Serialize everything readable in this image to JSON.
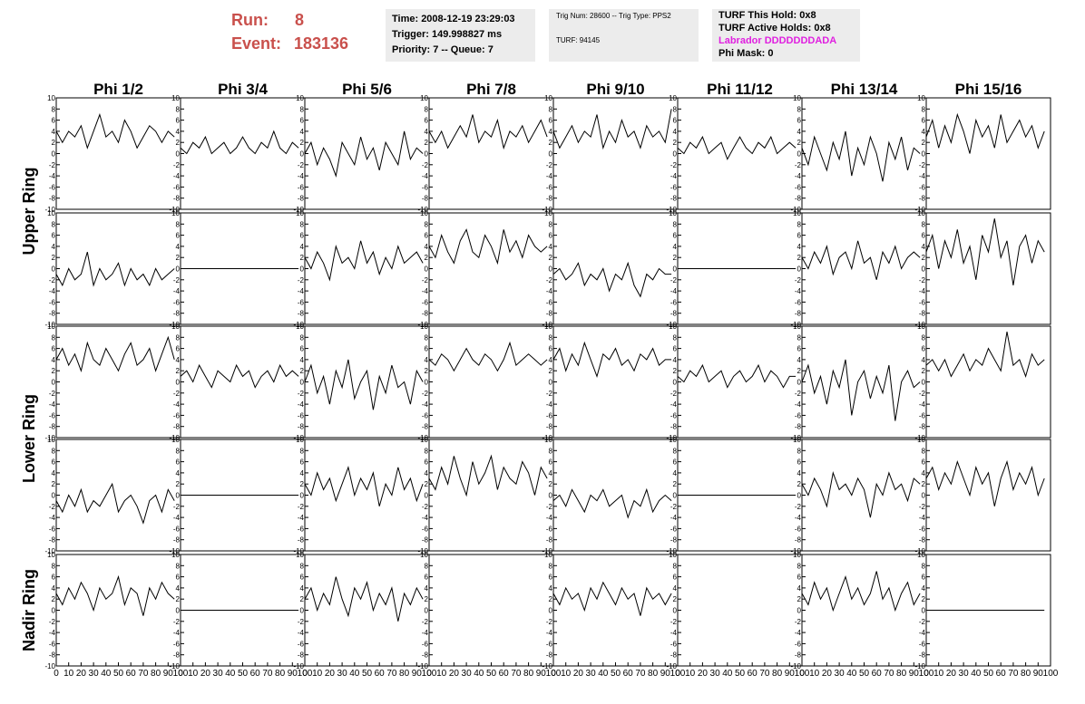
{
  "header": {
    "run_label": "Run:",
    "run": "8",
    "event_label": "Event:",
    "event": "183136",
    "time": "Time: 2008-12-19 23:29:03",
    "trigger": "Trigger: 149.998827 ms",
    "priority": "Priority: 7 -- Queue: 7",
    "trig_num": "Trig Num: 28600 -- Trig Type: PPS2",
    "turf": "TURF: 94145",
    "turf_hold": "TURF This Hold: 0x8",
    "turf_active": "TURF Active Holds: 0x8",
    "labrador": "Labrador DDDDDDDADA",
    "phi_mask": "Phi Mask: 0"
  },
  "chart_data": {
    "type": "line",
    "color": "#000000",
    "columns": [
      "Phi 1/2",
      "Phi 3/4",
      "Phi 5/6",
      "Phi 7/8",
      "Phi 9/10",
      "Phi 11/12",
      "Phi 13/14",
      "Phi 15/16"
    ],
    "ring_labels": [
      "Upper Ring",
      "Lower Ring",
      "Nadir Ring"
    ],
    "x": [
      0,
      5,
      10,
      15,
      20,
      25,
      30,
      35,
      40,
      45,
      50,
      55,
      60,
      65,
      70,
      75,
      80,
      85,
      90,
      95
    ],
    "xlim": [
      0,
      100
    ],
    "xticks": [
      0,
      10,
      20,
      30,
      40,
      50,
      60,
      70,
      80,
      90,
      100
    ],
    "ylim": [
      -10,
      10
    ],
    "yticks": [
      -10,
      -8,
      -6,
      -4,
      -2,
      0,
      2,
      4,
      6,
      8,
      10
    ],
    "traces": [
      [
        [
          4,
          2,
          4,
          3,
          5,
          1,
          4,
          7,
          3,
          4,
          2,
          6,
          4,
          1,
          3,
          5,
          4,
          2,
          4,
          3
        ],
        [
          1,
          0,
          2,
          1,
          3,
          0,
          1,
          2,
          0,
          1,
          3,
          1,
          0,
          2,
          1,
          4,
          1,
          0,
          2,
          1
        ],
        [
          0,
          2,
          -2,
          1,
          -1,
          -4,
          2,
          0,
          -2,
          3,
          -1,
          1,
          -3,
          2,
          0,
          -2,
          4,
          -1,
          1,
          0
        ],
        [
          4,
          2,
          4,
          1,
          3,
          5,
          3,
          7,
          2,
          4,
          3,
          6,
          1,
          4,
          3,
          5,
          2,
          4,
          6,
          3
        ],
        [
          4,
          1,
          3,
          5,
          2,
          4,
          3,
          7,
          1,
          4,
          2,
          6,
          3,
          4,
          1,
          5,
          3,
          4,
          2,
          8
        ],
        [
          1,
          0,
          2,
          1,
          3,
          0,
          1,
          2,
          -1,
          1,
          3,
          1,
          0,
          2,
          1,
          3,
          0,
          1,
          2,
          1
        ],
        [
          1,
          -2,
          3,
          0,
          -3,
          2,
          -1,
          4,
          -4,
          1,
          -2,
          3,
          0,
          -5,
          2,
          -1,
          3,
          -3,
          1,
          0
        ],
        [
          3,
          6,
          1,
          5,
          2,
          7,
          4,
          0,
          6,
          3,
          5,
          1,
          7,
          2,
          4,
          6,
          3,
          5,
          1,
          4
        ]
      ],
      [
        [
          -1,
          -3,
          0,
          -2,
          -1,
          3,
          -3,
          0,
          -2,
          -1,
          1,
          -3,
          0,
          -2,
          -1,
          -3,
          0,
          -2,
          -1,
          0
        ],
        [
          0,
          0,
          0,
          0,
          0,
          0,
          0,
          0,
          0,
          0,
          0,
          0,
          0,
          0,
          0,
          0,
          0,
          0,
          0,
          0
        ],
        [
          2,
          0,
          3,
          1,
          -2,
          4,
          1,
          2,
          0,
          5,
          1,
          3,
          -1,
          2,
          0,
          4,
          1,
          2,
          3,
          1
        ],
        [
          4,
          2,
          6,
          3,
          1,
          5,
          7,
          3,
          2,
          6,
          4,
          1,
          7,
          3,
          5,
          2,
          6,
          4,
          3,
          4
        ],
        [
          -1,
          0,
          -2,
          -1,
          1,
          -3,
          -1,
          -2,
          0,
          -4,
          -1,
          -2,
          1,
          -3,
          -5,
          -1,
          -2,
          0,
          -1,
          -1
        ],
        [
          0,
          0,
          0,
          0,
          0,
          0,
          0,
          0,
          0,
          0,
          0,
          0,
          0,
          0,
          0,
          0,
          0,
          0,
          0,
          0
        ],
        [
          2,
          0,
          3,
          1,
          4,
          -1,
          2,
          3,
          0,
          5,
          1,
          2,
          -2,
          3,
          1,
          4,
          0,
          2,
          3,
          2
        ],
        [
          3,
          6,
          0,
          5,
          2,
          7,
          1,
          4,
          -2,
          6,
          3,
          9,
          2,
          5,
          -3,
          4,
          6,
          1,
          5,
          3
        ]
      ],
      [
        [
          4,
          6,
          3,
          5,
          2,
          7,
          4,
          3,
          6,
          4,
          2,
          5,
          7,
          3,
          4,
          6,
          2,
          5,
          8,
          4
        ],
        [
          1,
          2,
          0,
          3,
          1,
          -1,
          2,
          1,
          0,
          3,
          1,
          2,
          -1,
          1,
          2,
          0,
          3,
          1,
          2,
          1
        ],
        [
          0,
          3,
          -2,
          1,
          -4,
          2,
          -1,
          4,
          -3,
          0,
          2,
          -5,
          1,
          -2,
          3,
          -1,
          0,
          -4,
          2,
          0
        ],
        [
          4,
          3,
          5,
          4,
          2,
          4,
          6,
          4,
          3,
          5,
          4,
          2,
          4,
          7,
          3,
          4,
          5,
          4,
          3,
          4
        ],
        [
          4,
          6,
          2,
          5,
          3,
          7,
          4,
          1,
          5,
          4,
          6,
          3,
          4,
          2,
          5,
          4,
          6,
          3,
          4,
          4
        ],
        [
          1,
          0,
          2,
          1,
          3,
          0,
          1,
          2,
          -1,
          1,
          2,
          0,
          1,
          3,
          0,
          2,
          1,
          -1,
          1,
          1
        ],
        [
          0,
          3,
          -2,
          1,
          -4,
          2,
          -1,
          4,
          -6,
          0,
          2,
          -3,
          1,
          -2,
          3,
          -7,
          0,
          2,
          -1,
          0
        ],
        [
          3,
          4,
          2,
          4,
          1,
          3,
          5,
          2,
          4,
          3,
          6,
          4,
          2,
          9,
          3,
          4,
          1,
          5,
          3,
          4
        ]
      ],
      [
        [
          -1,
          -3,
          0,
          -2,
          1,
          -3,
          -1,
          -2,
          0,
          2,
          -3,
          -1,
          0,
          -2,
          -5,
          -1,
          0,
          -3,
          1,
          -1
        ],
        [
          0,
          0,
          0,
          0,
          0,
          0,
          0,
          0,
          0,
          0,
          0,
          0,
          0,
          0,
          0,
          0,
          0,
          0,
          0,
          0
        ],
        [
          2,
          0,
          4,
          1,
          3,
          -1,
          2,
          5,
          0,
          3,
          1,
          4,
          -2,
          2,
          0,
          5,
          1,
          3,
          -1,
          2
        ],
        [
          3,
          1,
          5,
          2,
          7,
          3,
          0,
          6,
          2,
          4,
          7,
          1,
          5,
          3,
          2,
          6,
          4,
          0,
          5,
          3
        ],
        [
          -1,
          0,
          -2,
          1,
          -1,
          -3,
          0,
          -1,
          1,
          -2,
          -1,
          0,
          -4,
          -1,
          -2,
          1,
          -3,
          -1,
          0,
          -1
        ],
        [
          0,
          0,
          0,
          0,
          0,
          0,
          0,
          0,
          0,
          0,
          0,
          0,
          0,
          0,
          0,
          0,
          0,
          0,
          0,
          0
        ],
        [
          2,
          0,
          3,
          1,
          -2,
          4,
          1,
          2,
          0,
          3,
          1,
          -4,
          2,
          0,
          4,
          1,
          2,
          -1,
          3,
          2
        ],
        [
          3,
          5,
          1,
          4,
          2,
          6,
          3,
          0,
          5,
          2,
          4,
          -2,
          3,
          6,
          1,
          4,
          2,
          5,
          0,
          3
        ]
      ],
      [
        [
          3,
          1,
          4,
          2,
          5,
          3,
          0,
          4,
          2,
          3,
          6,
          1,
          4,
          3,
          -1,
          4,
          2,
          5,
          3,
          2
        ],
        [
          0,
          0,
          0,
          0,
          0,
          0,
          0,
          0,
          0,
          0,
          0,
          0,
          0,
          0,
          0,
          0,
          0,
          0,
          0,
          0
        ],
        [
          2,
          4,
          0,
          3,
          1,
          6,
          2,
          -1,
          4,
          2,
          5,
          0,
          3,
          1,
          4,
          -2,
          3,
          1,
          4,
          2
        ],
        null,
        [
          3,
          1,
          4,
          2,
          3,
          0,
          4,
          2,
          5,
          3,
          1,
          4,
          2,
          3,
          -1,
          4,
          2,
          3,
          1,
          3
        ],
        null,
        [
          3,
          1,
          5,
          2,
          4,
          0,
          3,
          6,
          2,
          4,
          1,
          3,
          7,
          2,
          4,
          0,
          3,
          5,
          1,
          3
        ],
        [
          0,
          0,
          0,
          0,
          0,
          0,
          0,
          0,
          0,
          0,
          0,
          0,
          0,
          0,
          0,
          0,
          0,
          0,
          0,
          0
        ]
      ]
    ]
  }
}
